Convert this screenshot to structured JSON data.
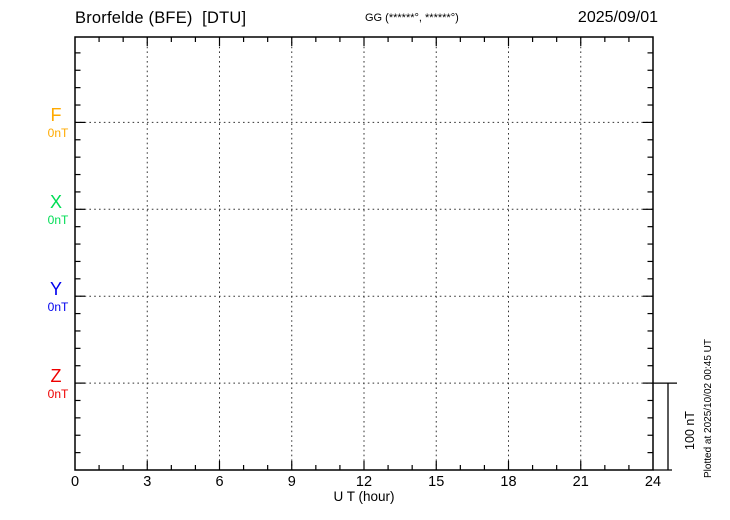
{
  "header": {
    "title": "Brorfelde (BFE)  [DTU]",
    "coords": "GG (******°, ******°)",
    "date": "2025/09/01"
  },
  "chart_data": {
    "type": "line",
    "title": "Brorfelde (BFE)  [DTU]",
    "subtitle": "GG (******°, ******°)",
    "date": "2025/09/01",
    "xlabel": "U T (hour)",
    "x_range": [
      0,
      24
    ],
    "x_ticks": [
      0,
      3,
      6,
      9,
      12,
      15,
      18,
      21,
      24
    ],
    "x_minor_tick_step_hours": 1,
    "y_minor_division_nT": 20,
    "y_baseline_spacing_nT": 100,
    "grid": "dotted vertical lines every 3 hours; dotted horizontal line at each channel baseline",
    "legend_position": "left margin, one colored label per channel baseline",
    "series": [
      {
        "name": "F",
        "baseline_value_label": "0nT",
        "color": "#FFAA00",
        "values": []
      },
      {
        "name": "X",
        "baseline_value_label": "0nT",
        "color": "#00DD55",
        "values": []
      },
      {
        "name": "Y",
        "baseline_value_label": "0nT",
        "color": "#0000EE",
        "values": []
      },
      {
        "name": "Z",
        "baseline_value_label": "0nT",
        "color": "#EE0000",
        "values": []
      }
    ],
    "note": "empty magnetogram grid for the day; no data traces drawn",
    "scale_bar": {
      "label": "100 nT"
    },
    "footer": "Plotted at 2025/10/02 00:45 UT",
    "frame_color": "#000000"
  }
}
